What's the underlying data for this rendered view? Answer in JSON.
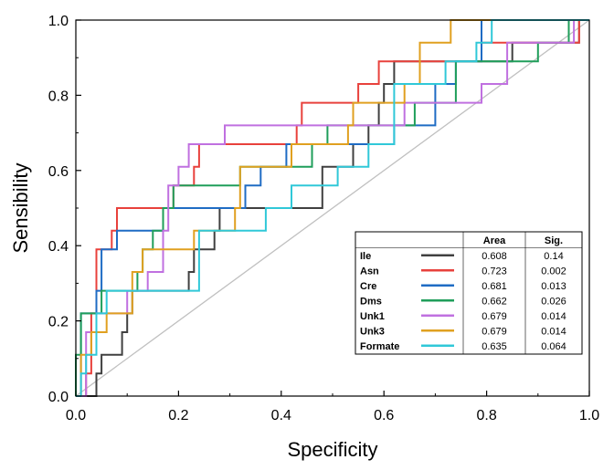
{
  "chart_data": {
    "type": "line",
    "title": "",
    "xlabel": "Specificity",
    "ylabel": "Sensibility",
    "xlim": [
      0.0,
      1.0
    ],
    "ylim": [
      0.0,
      1.0
    ],
    "x_ticks": [
      "0.0",
      "0.2",
      "0.4",
      "0.6",
      "0.8",
      "1.0"
    ],
    "y_ticks": [
      "0.0",
      "0.2",
      "0.4",
      "0.6",
      "0.8",
      "1.0"
    ],
    "grid": false,
    "legend_position": "lower-right",
    "legend_headers": {
      "area": "Area",
      "sig": "Sig."
    },
    "reference_line": {
      "points": [
        [
          0.0,
          0.0
        ],
        [
          1.0,
          1.0
        ]
      ],
      "color": "#c0c0c0"
    },
    "series": [
      {
        "name": "Ile",
        "color": "#404040",
        "area": "0.608",
        "sig": "0.14",
        "points": [
          [
            0.0,
            0.0
          ],
          [
            0.04,
            0.0
          ],
          [
            0.04,
            0.06
          ],
          [
            0.05,
            0.06
          ],
          [
            0.05,
            0.11
          ],
          [
            0.09,
            0.11
          ],
          [
            0.09,
            0.17
          ],
          [
            0.1,
            0.17
          ],
          [
            0.1,
            0.22
          ],
          [
            0.11,
            0.22
          ],
          [
            0.11,
            0.28
          ],
          [
            0.22,
            0.28
          ],
          [
            0.22,
            0.33
          ],
          [
            0.23,
            0.33
          ],
          [
            0.23,
            0.39
          ],
          [
            0.27,
            0.39
          ],
          [
            0.27,
            0.44
          ],
          [
            0.28,
            0.44
          ],
          [
            0.28,
            0.5
          ],
          [
            0.48,
            0.5
          ],
          [
            0.48,
            0.61
          ],
          [
            0.54,
            0.61
          ],
          [
            0.54,
            0.67
          ],
          [
            0.57,
            0.67
          ],
          [
            0.57,
            0.72
          ],
          [
            0.59,
            0.72
          ],
          [
            0.59,
            0.78
          ],
          [
            0.6,
            0.78
          ],
          [
            0.6,
            0.83
          ],
          [
            0.62,
            0.83
          ],
          [
            0.62,
            0.89
          ],
          [
            0.85,
            0.89
          ],
          [
            0.85,
            0.94
          ],
          [
            0.98,
            0.94
          ],
          [
            0.98,
            1.0
          ],
          [
            1.0,
            1.0
          ]
        ]
      },
      {
        "name": "Asn",
        "color": "#e8413c",
        "area": "0.723",
        "sig": "0.002",
        "points": [
          [
            0.0,
            0.0
          ],
          [
            0.02,
            0.0
          ],
          [
            0.02,
            0.06
          ],
          [
            0.03,
            0.06
          ],
          [
            0.03,
            0.17
          ],
          [
            0.03,
            0.22
          ],
          [
            0.04,
            0.22
          ],
          [
            0.04,
            0.39
          ],
          [
            0.07,
            0.39
          ],
          [
            0.07,
            0.44
          ],
          [
            0.08,
            0.44
          ],
          [
            0.08,
            0.5
          ],
          [
            0.19,
            0.5
          ],
          [
            0.19,
            0.56
          ],
          [
            0.23,
            0.56
          ],
          [
            0.23,
            0.61
          ],
          [
            0.24,
            0.61
          ],
          [
            0.24,
            0.67
          ],
          [
            0.43,
            0.67
          ],
          [
            0.43,
            0.72
          ],
          [
            0.44,
            0.72
          ],
          [
            0.44,
            0.78
          ],
          [
            0.55,
            0.78
          ],
          [
            0.55,
            0.83
          ],
          [
            0.59,
            0.83
          ],
          [
            0.59,
            0.89
          ],
          [
            0.79,
            0.89
          ],
          [
            0.79,
            0.94
          ],
          [
            0.98,
            0.94
          ],
          [
            0.98,
            1.0
          ],
          [
            1.0,
            1.0
          ]
        ]
      },
      {
        "name": "Cre",
        "color": "#1f6cc4",
        "area": "0.681",
        "sig": "0.013",
        "points": [
          [
            0.0,
            0.0
          ],
          [
            0.01,
            0.0
          ],
          [
            0.01,
            0.11
          ],
          [
            0.01,
            0.22
          ],
          [
            0.04,
            0.22
          ],
          [
            0.04,
            0.28
          ],
          [
            0.05,
            0.28
          ],
          [
            0.05,
            0.39
          ],
          [
            0.08,
            0.39
          ],
          [
            0.08,
            0.44
          ],
          [
            0.17,
            0.44
          ],
          [
            0.17,
            0.5
          ],
          [
            0.33,
            0.5
          ],
          [
            0.33,
            0.56
          ],
          [
            0.36,
            0.56
          ],
          [
            0.36,
            0.61
          ],
          [
            0.41,
            0.61
          ],
          [
            0.41,
            0.67
          ],
          [
            0.62,
            0.67
          ],
          [
            0.62,
            0.72
          ],
          [
            0.7,
            0.72
          ],
          [
            0.7,
            0.83
          ],
          [
            0.74,
            0.83
          ],
          [
            0.74,
            0.89
          ],
          [
            0.79,
            0.89
          ],
          [
            0.79,
            1.0
          ],
          [
            1.0,
            1.0
          ]
        ]
      },
      {
        "name": "Dms",
        "color": "#1f9e5a",
        "area": "0.662",
        "sig": "0.026",
        "points": [
          [
            0.0,
            0.0
          ],
          [
            0.0,
            0.11
          ],
          [
            0.01,
            0.11
          ],
          [
            0.01,
            0.22
          ],
          [
            0.05,
            0.22
          ],
          [
            0.05,
            0.28
          ],
          [
            0.12,
            0.28
          ],
          [
            0.12,
            0.33
          ],
          [
            0.13,
            0.33
          ],
          [
            0.13,
            0.39
          ],
          [
            0.15,
            0.39
          ],
          [
            0.15,
            0.44
          ],
          [
            0.17,
            0.44
          ],
          [
            0.17,
            0.5
          ],
          [
            0.19,
            0.5
          ],
          [
            0.19,
            0.56
          ],
          [
            0.32,
            0.56
          ],
          [
            0.32,
            0.61
          ],
          [
            0.46,
            0.61
          ],
          [
            0.46,
            0.67
          ],
          [
            0.49,
            0.67
          ],
          [
            0.49,
            0.72
          ],
          [
            0.66,
            0.72
          ],
          [
            0.66,
            0.78
          ],
          [
            0.74,
            0.78
          ],
          [
            0.74,
            0.89
          ],
          [
            0.9,
            0.89
          ],
          [
            0.9,
            0.94
          ],
          [
            0.96,
            0.94
          ],
          [
            0.96,
            1.0
          ],
          [
            1.0,
            1.0
          ]
        ]
      },
      {
        "name": "Unk1",
        "color": "#c070e0",
        "area": "0.679",
        "sig": "0.014",
        "points": [
          [
            0.0,
            0.0
          ],
          [
            0.02,
            0.0
          ],
          [
            0.02,
            0.17
          ],
          [
            0.04,
            0.17
          ],
          [
            0.04,
            0.22
          ],
          [
            0.1,
            0.22
          ],
          [
            0.1,
            0.28
          ],
          [
            0.14,
            0.28
          ],
          [
            0.14,
            0.33
          ],
          [
            0.17,
            0.33
          ],
          [
            0.17,
            0.44
          ],
          [
            0.18,
            0.44
          ],
          [
            0.18,
            0.56
          ],
          [
            0.2,
            0.56
          ],
          [
            0.2,
            0.61
          ],
          [
            0.22,
            0.61
          ],
          [
            0.22,
            0.67
          ],
          [
            0.29,
            0.67
          ],
          [
            0.29,
            0.72
          ],
          [
            0.64,
            0.72
          ],
          [
            0.64,
            0.78
          ],
          [
            0.79,
            0.78
          ],
          [
            0.79,
            0.83
          ],
          [
            0.84,
            0.83
          ],
          [
            0.84,
            0.94
          ],
          [
            0.97,
            0.94
          ],
          [
            0.97,
            1.0
          ],
          [
            1.0,
            1.0
          ]
        ]
      },
      {
        "name": "Unk3",
        "color": "#e0a020",
        "area": "0.679",
        "sig": "0.014",
        "points": [
          [
            0.0,
            0.0
          ],
          [
            0.01,
            0.0
          ],
          [
            0.01,
            0.11
          ],
          [
            0.03,
            0.11
          ],
          [
            0.03,
            0.17
          ],
          [
            0.06,
            0.17
          ],
          [
            0.06,
            0.22
          ],
          [
            0.11,
            0.22
          ],
          [
            0.11,
            0.33
          ],
          [
            0.13,
            0.33
          ],
          [
            0.13,
            0.39
          ],
          [
            0.23,
            0.39
          ],
          [
            0.23,
            0.44
          ],
          [
            0.31,
            0.44
          ],
          [
            0.31,
            0.5
          ],
          [
            0.32,
            0.5
          ],
          [
            0.32,
            0.61
          ],
          [
            0.42,
            0.61
          ],
          [
            0.42,
            0.67
          ],
          [
            0.53,
            0.67
          ],
          [
            0.53,
            0.72
          ],
          [
            0.54,
            0.72
          ],
          [
            0.54,
            0.78
          ],
          [
            0.64,
            0.78
          ],
          [
            0.64,
            0.83
          ],
          [
            0.67,
            0.83
          ],
          [
            0.67,
            0.94
          ],
          [
            0.73,
            0.94
          ],
          [
            0.73,
            1.0
          ],
          [
            1.0,
            1.0
          ]
        ]
      },
      {
        "name": "Formate",
        "color": "#30c8d8",
        "area": "0.635",
        "sig": "0.064",
        "points": [
          [
            0.0,
            0.0
          ],
          [
            0.01,
            0.0
          ],
          [
            0.01,
            0.06
          ],
          [
            0.02,
            0.06
          ],
          [
            0.02,
            0.11
          ],
          [
            0.04,
            0.11
          ],
          [
            0.04,
            0.22
          ],
          [
            0.06,
            0.22
          ],
          [
            0.06,
            0.28
          ],
          [
            0.24,
            0.28
          ],
          [
            0.24,
            0.44
          ],
          [
            0.37,
            0.44
          ],
          [
            0.37,
            0.5
          ],
          [
            0.42,
            0.5
          ],
          [
            0.42,
            0.56
          ],
          [
            0.51,
            0.56
          ],
          [
            0.51,
            0.61
          ],
          [
            0.57,
            0.61
          ],
          [
            0.57,
            0.67
          ],
          [
            0.62,
            0.67
          ],
          [
            0.62,
            0.83
          ],
          [
            0.72,
            0.83
          ],
          [
            0.72,
            0.89
          ],
          [
            0.78,
            0.89
          ],
          [
            0.78,
            0.94
          ],
          [
            0.81,
            0.94
          ],
          [
            0.81,
            1.0
          ],
          [
            1.0,
            1.0
          ]
        ]
      }
    ]
  }
}
